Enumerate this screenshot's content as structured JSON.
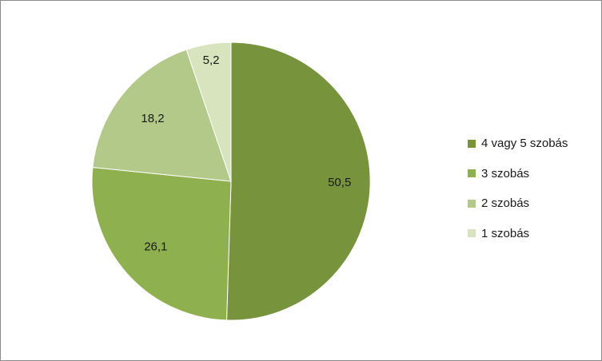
{
  "chart_data": {
    "type": "pie",
    "categories": [
      "4 vagy 5 szobás",
      "3 szobás",
      "2 szobás",
      "1 szobás"
    ],
    "values": [
      50.5,
      26.1,
      18.2,
      5.2
    ],
    "value_labels": [
      "50,5",
      "26,1",
      "18,2",
      "5,2"
    ],
    "colors": [
      "#77933c",
      "#8fb04f",
      "#b2c98a",
      "#d7e4bd"
    ],
    "start_angle": "12 o'clock",
    "direction": "clockwise",
    "legend_position": "right"
  }
}
